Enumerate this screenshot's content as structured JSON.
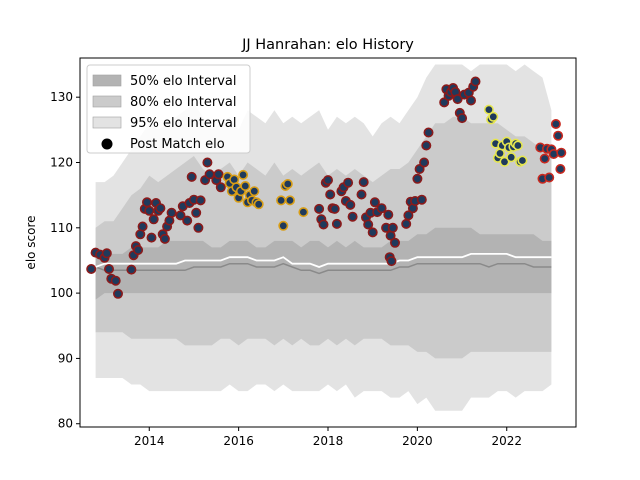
{
  "chart_data": {
    "type": "scatter",
    "title": "JJ Hanrahan: elo History",
    "xlabel": "",
    "ylabel": "elo score",
    "xlim": [
      2012.45,
      2023.55
    ],
    "ylim": [
      79.5,
      136
    ],
    "xticks": [
      2014,
      2016,
      2018,
      2020,
      2022
    ],
    "yticks": [
      80,
      90,
      100,
      110,
      120,
      130
    ],
    "grid": false,
    "legend_position": "top-left",
    "legend": [
      {
        "label": "50% elo Interval",
        "kind": "band",
        "color": "#b3b3b3"
      },
      {
        "label": "80% elo Interval",
        "kind": "band",
        "color": "#cbcbcb"
      },
      {
        "label": "95% elo Interval",
        "kind": "band",
        "color": "#e3e3e3"
      },
      {
        "label": "Post Match elo",
        "kind": "marker",
        "color": "#000000"
      }
    ],
    "colors": {
      "band95": "#e3e3e3",
      "band80": "#cbcbcb",
      "band50": "#b3b3b3",
      "median_line": "#8a8a8a",
      "mean_line": "#ffffff",
      "marker_face": "#1f3a5c"
    },
    "band_x": [
      2012.8,
      2013.0,
      2013.2,
      2013.4,
      2013.6,
      2013.8,
      2014.0,
      2014.2,
      2014.4,
      2014.6,
      2014.8,
      2015.0,
      2015.2,
      2015.4,
      2015.6,
      2015.8,
      2016.0,
      2016.2,
      2016.4,
      2016.6,
      2016.8,
      2017.0,
      2017.2,
      2017.4,
      2017.6,
      2017.8,
      2018.0,
      2018.2,
      2018.4,
      2018.6,
      2018.8,
      2019.0,
      2019.2,
      2019.4,
      2019.6,
      2019.8,
      2020.0,
      2020.2,
      2020.4,
      2020.6,
      2020.8,
      2021.0,
      2021.2,
      2021.4,
      2021.6,
      2021.8,
      2022.0,
      2022.2,
      2022.4,
      2022.6,
      2022.8,
      2023.0
    ],
    "band95_upper": [
      117,
      117,
      118,
      120,
      122,
      124,
      126,
      125,
      126,
      127,
      128,
      129,
      127,
      125,
      126,
      127,
      125,
      128,
      127,
      126,
      128,
      126,
      127,
      126,
      127,
      128,
      125,
      127,
      126,
      127,
      126,
      124,
      126,
      127,
      126,
      128,
      130,
      133,
      135,
      135,
      135,
      135,
      134,
      135,
      135,
      135,
      135,
      134,
      135,
      134,
      133,
      128
    ],
    "band80_upper": [
      110,
      111,
      111,
      113,
      115,
      116,
      118,
      117,
      118,
      119,
      120,
      121,
      119,
      118,
      119,
      120,
      118,
      120,
      119,
      118,
      120,
      118,
      119,
      118,
      119,
      120,
      118,
      119,
      118,
      119,
      118,
      117,
      118,
      119,
      119,
      120,
      122,
      124,
      126,
      126,
      127,
      127,
      126,
      126,
      126,
      126,
      125,
      124,
      124,
      123,
      122,
      121
    ],
    "band50_upper": [
      106,
      106,
      106,
      106,
      107,
      107,
      107,
      107,
      108,
      108,
      108,
      108,
      108,
      107,
      107,
      108,
      108,
      108,
      107,
      107,
      108,
      108,
      108,
      107,
      108,
      108,
      107,
      108,
      107,
      108,
      107,
      107,
      107,
      108,
      108,
      108,
      109,
      109,
      110,
      110,
      110,
      110,
      110,
      109,
      109,
      109,
      109,
      109,
      109,
      109,
      108,
      108
    ],
    "band50_lower": [
      99,
      100,
      100,
      100,
      100,
      100,
      100,
      100,
      100,
      100,
      100,
      100,
      100,
      100,
      100,
      100,
      100,
      100,
      100,
      100,
      100,
      100,
      100,
      100,
      100,
      100,
      100,
      100,
      100,
      100,
      100,
      100,
      100,
      100,
      100,
      100,
      100,
      100,
      100,
      100,
      100,
      100,
      100,
      100,
      100,
      100,
      100,
      100,
      100,
      100,
      100,
      100
    ],
    "band80_lower": [
      94,
      94,
      94,
      94,
      93,
      93,
      93,
      93,
      93,
      93,
      92,
      92,
      92,
      92,
      93,
      93,
      92,
      93,
      93,
      93,
      92,
      93,
      92,
      93,
      92,
      92,
      93,
      92,
      93,
      92,
      93,
      93,
      93,
      92,
      92,
      92,
      91,
      91,
      90,
      90,
      90,
      90,
      91,
      91,
      91,
      91,
      91,
      91,
      91,
      91,
      91,
      91
    ],
    "band95_lower": [
      87,
      87,
      87,
      87,
      86,
      86,
      85,
      85,
      85,
      85,
      85,
      85,
      85,
      85,
      85,
      86,
      85,
      85,
      86,
      86,
      85,
      86,
      85,
      85,
      85,
      85,
      86,
      85,
      86,
      84,
      85,
      85,
      85,
      84,
      84,
      85,
      83,
      84,
      82,
      82,
      82,
      82,
      84,
      84,
      84,
      85,
      85,
      84,
      85,
      85,
      85,
      86
    ],
    "median_line": [
      104,
      103.5,
      103.5,
      103.5,
      103.5,
      103.5,
      103.5,
      103.5,
      103.5,
      103.5,
      103.5,
      104,
      104,
      104,
      104,
      104.5,
      104.5,
      104.5,
      104,
      104,
      104,
      104.5,
      104,
      103.5,
      103.5,
      103,
      103.5,
      103.5,
      103.5,
      103.5,
      103.5,
      103.5,
      103.5,
      103.5,
      104,
      104,
      104.5,
      104.5,
      104.5,
      104.5,
      104.5,
      104.5,
      104.5,
      104.5,
      104,
      104.5,
      104.5,
      104.5,
      104.5,
      104,
      104,
      104
    ],
    "mean_line": [
      104,
      104.5,
      104.5,
      104.5,
      104.5,
      104.5,
      104.5,
      104.5,
      104.5,
      104.5,
      105,
      105,
      105,
      105,
      105,
      105.5,
      105.5,
      105.5,
      105,
      105,
      105,
      105.5,
      104.5,
      104.5,
      104.5,
      104,
      104.5,
      104.5,
      104.5,
      104.5,
      104.5,
      104.5,
      104.5,
      104.5,
      105,
      105,
      105.5,
      105.5,
      105.5,
      105.5,
      105.5,
      105.5,
      106,
      106,
      106,
      106,
      106,
      105.5,
      105.5,
      105.5,
      105.5,
      105.5
    ],
    "series": [
      {
        "edge": "#8b1a1a",
        "points": [
          [
            2012.7,
            103.7
          ],
          [
            2012.8,
            106.2
          ],
          [
            2012.9,
            105.9
          ],
          [
            2013.0,
            105.4
          ],
          [
            2013.05,
            106.1
          ],
          [
            2013.1,
            103.7
          ],
          [
            2013.15,
            102.2
          ],
          [
            2013.25,
            101.9
          ],
          [
            2013.3,
            99.9
          ],
          [
            2013.6,
            103.6
          ],
          [
            2013.65,
            105.8
          ],
          [
            2013.7,
            107.2
          ],
          [
            2013.75,
            106.6
          ],
          [
            2013.8,
            109.0
          ],
          [
            2013.85,
            110.2
          ],
          [
            2013.9,
            112.9
          ],
          [
            2013.95,
            113.9
          ],
          [
            2014.0,
            112.6
          ],
          [
            2014.05,
            108.5
          ],
          [
            2014.1,
            111.3
          ],
          [
            2014.15,
            113.8
          ],
          [
            2014.2,
            112.6
          ],
          [
            2014.25,
            113.0
          ],
          [
            2014.3,
            109.0
          ],
          [
            2014.35,
            108.3
          ],
          [
            2014.4,
            110.2
          ],
          [
            2014.45,
            111.1
          ],
          [
            2014.5,
            112.3
          ],
          [
            2014.7,
            111.9
          ],
          [
            2014.75,
            113.3
          ],
          [
            2014.85,
            111.1
          ],
          [
            2014.9,
            113.8
          ],
          [
            2014.95,
            117.8
          ],
          [
            2015.0,
            114.3
          ],
          [
            2015.05,
            112.3
          ],
          [
            2015.1,
            110.0
          ],
          [
            2015.15,
            114.2
          ],
          [
            2015.25,
            117.3
          ],
          [
            2015.3,
            120.0
          ],
          [
            2015.35,
            118.2
          ],
          [
            2015.5,
            117.3
          ],
          [
            2015.55,
            118.2
          ],
          [
            2015.6,
            116.2
          ]
        ]
      },
      {
        "edge": "#d99e16",
        "points": [
          [
            2015.75,
            117.8
          ],
          [
            2015.8,
            116.8
          ],
          [
            2015.85,
            115.6
          ],
          [
            2015.9,
            117.4
          ],
          [
            2015.95,
            116.2
          ],
          [
            2016.0,
            114.6
          ],
          [
            2016.05,
            115.6
          ],
          [
            2016.1,
            118.1
          ],
          [
            2016.15,
            116.4
          ],
          [
            2016.2,
            113.9
          ],
          [
            2016.25,
            115.0
          ],
          [
            2016.3,
            114.2
          ],
          [
            2016.35,
            115.6
          ],
          [
            2016.4,
            113.9
          ],
          [
            2016.45,
            113.6
          ]
        ]
      },
      {
        "edge": "#d99e16",
        "points": [
          [
            2016.95,
            114.2
          ],
          [
            2017.0,
            110.3
          ],
          [
            2017.05,
            116.4
          ],
          [
            2017.1,
            116.7
          ],
          [
            2017.15,
            114.2
          ],
          [
            2017.45,
            112.4
          ]
        ]
      },
      {
        "edge": "#8b1a1a",
        "points": [
          [
            2017.8,
            112.9
          ],
          [
            2017.85,
            111.3
          ],
          [
            2017.9,
            110.5
          ],
          [
            2017.95,
            116.9
          ],
          [
            2018.0,
            117.3
          ],
          [
            2018.05,
            115.1
          ],
          [
            2018.1,
            113.0
          ],
          [
            2018.15,
            112.9
          ],
          [
            2018.2,
            110.6
          ],
          [
            2018.3,
            115.6
          ],
          [
            2018.35,
            116.2
          ],
          [
            2018.4,
            114.1
          ],
          [
            2018.45,
            116.9
          ],
          [
            2018.5,
            113.5
          ],
          [
            2018.55,
            111.7
          ],
          [
            2018.75,
            115.1
          ],
          [
            2018.8,
            117.0
          ],
          [
            2018.85,
            111.6
          ],
          [
            2018.9,
            110.5
          ],
          [
            2018.95,
            112.3
          ],
          [
            2019.0,
            109.3
          ],
          [
            2019.05,
            113.9
          ],
          [
            2019.1,
            112.4
          ],
          [
            2019.2,
            113.0
          ],
          [
            2019.3,
            110.0
          ],
          [
            2019.35,
            112.0
          ],
          [
            2019.4,
            108.8
          ],
          [
            2019.45,
            110.0
          ],
          [
            2019.5,
            107.7
          ],
          [
            2019.38,
            105.5
          ],
          [
            2019.42,
            104.9
          ],
          [
            2019.75,
            110.6
          ],
          [
            2019.8,
            111.9
          ],
          [
            2019.85,
            114.0
          ],
          [
            2019.9,
            113.0
          ],
          [
            2019.95,
            114.1
          ],
          [
            2020.0,
            117.5
          ],
          [
            2020.05,
            119.0
          ],
          [
            2020.1,
            114.3
          ],
          [
            2020.15,
            120.0
          ],
          [
            2020.2,
            122.6
          ],
          [
            2020.25,
            124.6
          ],
          [
            2020.6,
            129.2
          ],
          [
            2020.65,
            131.2
          ],
          [
            2020.7,
            130.2
          ],
          [
            2020.75,
            130.8
          ],
          [
            2020.8,
            131.4
          ],
          [
            2020.85,
            130.8
          ],
          [
            2020.9,
            129.7
          ],
          [
            2020.95,
            127.6
          ],
          [
            2021.0,
            126.8
          ],
          [
            2021.05,
            130.4
          ],
          [
            2021.15,
            130.7
          ],
          [
            2021.2,
            129.5
          ],
          [
            2021.25,
            131.6
          ],
          [
            2021.3,
            132.4
          ]
        ]
      },
      {
        "edge": "#e6e650",
        "points": [
          [
            2021.6,
            128.1
          ],
          [
            2021.65,
            126.6
          ],
          [
            2021.7,
            127.0
          ],
          [
            2021.75,
            122.9
          ],
          [
            2021.8,
            120.7
          ],
          [
            2021.85,
            121.4
          ],
          [
            2021.9,
            122.6
          ],
          [
            2021.95,
            120.1
          ],
          [
            2022.0,
            123.2
          ],
          [
            2022.05,
            122.3
          ],
          [
            2022.1,
            120.8
          ],
          [
            2022.15,
            122.4
          ],
          [
            2022.2,
            122.9
          ],
          [
            2022.25,
            122.6
          ],
          [
            2022.3,
            120.1
          ],
          [
            2022.35,
            120.3
          ]
        ]
      },
      {
        "edge": "#c8281e",
        "points": [
          [
            2022.75,
            122.3
          ],
          [
            2022.8,
            117.5
          ],
          [
            2022.85,
            120.6
          ],
          [
            2022.9,
            122.1
          ],
          [
            2022.95,
            117.7
          ],
          [
            2023.0,
            122.0
          ],
          [
            2023.05,
            121.3
          ],
          [
            2023.1,
            125.9
          ],
          [
            2023.15,
            124.1
          ],
          [
            2023.2,
            119.0
          ],
          [
            2023.22,
            121.5
          ]
        ]
      }
    ]
  }
}
